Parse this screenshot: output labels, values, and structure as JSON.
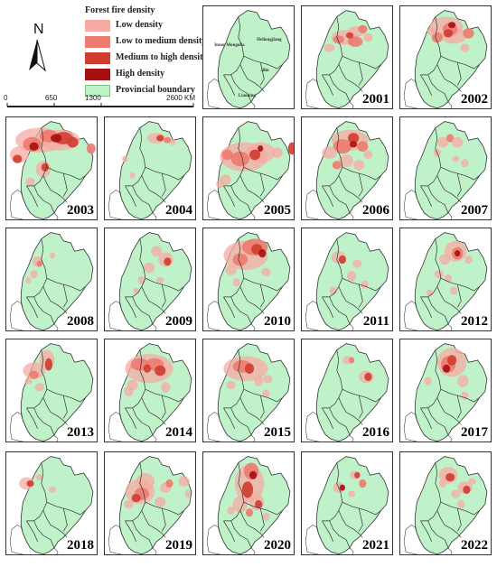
{
  "legend": {
    "title": "Forest fire density",
    "items": [
      {
        "label": "Low density",
        "color": "#f7a9a4"
      },
      {
        "label": "Low to medium density",
        "color": "#ee7a70"
      },
      {
        "label": "Medium to high density",
        "color": "#cf3c30"
      },
      {
        "label": "High density",
        "color": "#a50f0f"
      },
      {
        "label": "Provincial boundary",
        "color": "#bff2c8"
      }
    ]
  },
  "north_arrow": "N",
  "scale": {
    "ticks": [
      "0",
      "650",
      "1300",
      "2600 KM"
    ]
  },
  "provinces": [
    "Inner Mongolia",
    "Heilongjiang",
    "Jilin",
    "Liaoning"
  ],
  "years": [
    "2001",
    "2002",
    "2003",
    "2004",
    "2005",
    "2006",
    "2007",
    "2008",
    "2009",
    "2010",
    "2011",
    "2012",
    "2013",
    "2014",
    "2015",
    "2016",
    "2017",
    "2018",
    "2019",
    "2020",
    "2021",
    "2022"
  ],
  "density_levels": [
    "Low density",
    "Low to medium density",
    "Medium to high density",
    "High density"
  ]
}
